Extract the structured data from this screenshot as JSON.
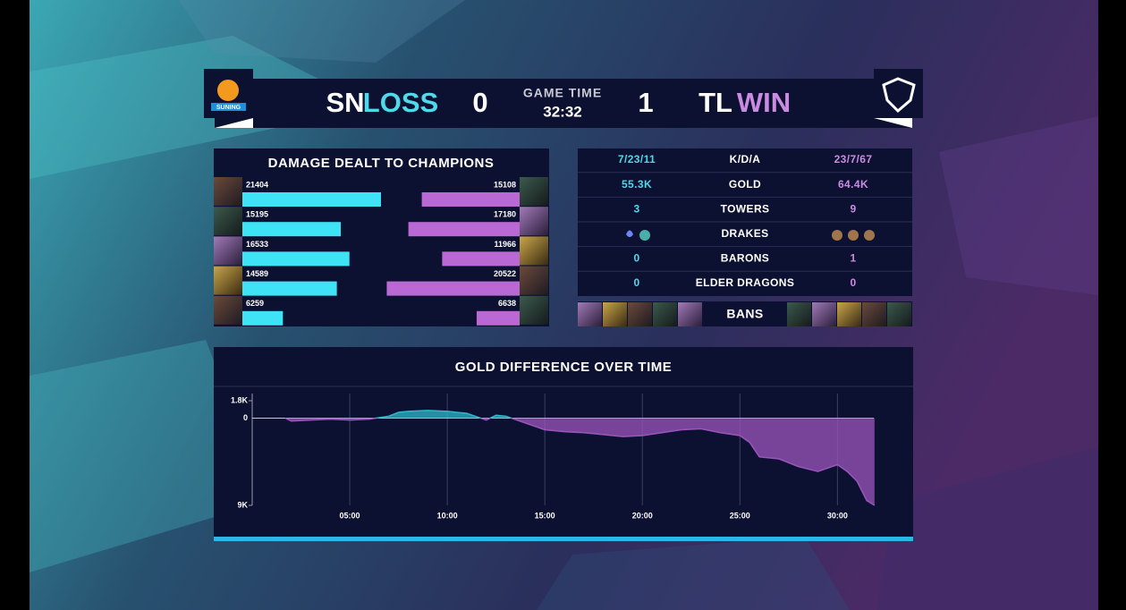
{
  "header": {
    "team_left": {
      "logo_text": "SUNING",
      "tag": "SN",
      "result": "LOSS",
      "score": 0
    },
    "game_time_label": "GAME TIME",
    "game_time": "32:32",
    "team_right": {
      "tag": "TL",
      "result": "WIN",
      "score": 1
    }
  },
  "stats": {
    "rows": [
      {
        "left": "7/23/11",
        "label": "K/D/A",
        "right": "23/7/67"
      },
      {
        "left": "55.3K",
        "label": "GOLD",
        "right": "64.4K"
      },
      {
        "left": 3,
        "label": "TOWERS",
        "right": 9
      },
      {
        "label": "DRAKES"
      },
      {
        "left": 0,
        "label": "BARONS",
        "right": 1
      },
      {
        "left": 0,
        "label": "ELDER DRAGONS",
        "right": 0
      }
    ],
    "bans_label": "BANS"
  },
  "chart_data": [
    {
      "type": "mirror-bar",
      "title": "DAMAGE DEALT TO CHAMPIONS",
      "series": [
        {
          "color": "#3fe3f6",
          "values": [
            21404,
            15195,
            16533,
            14589,
            6259
          ]
        },
        {
          "color": "#b968d4",
          "values": [
            15108,
            17180,
            11966,
            20522,
            6638
          ]
        }
      ]
    },
    {
      "type": "area",
      "title": "GOLD DIFFERENCE OVER TIME",
      "x": [
        1.7,
        2,
        3,
        4,
        5,
        6,
        7,
        7.5,
        8,
        9,
        10,
        11,
        12,
        12.5,
        13,
        14,
        15,
        16,
        17,
        18,
        19,
        20,
        21,
        22,
        23,
        24,
        25,
        25.5,
        26,
        27,
        28,
        29,
        30,
        30.5,
        31,
        31.5,
        31.9
      ],
      "series": [
        {
          "color": "#2fb7c9",
          "negative_color": "#9a55bd",
          "values": [
            0,
            -300,
            -200,
            -100,
            -200,
            -100,
            200,
            600,
            700,
            800,
            700,
            500,
            -200,
            300,
            200,
            -500,
            -1200,
            -1400,
            -1500,
            -1700,
            -1900,
            -1800,
            -1500,
            -1200,
            -1100,
            -1500,
            -1800,
            -2500,
            -4000,
            -4200,
            -5000,
            -5500,
            -4800,
            -5500,
            -6500,
            -8500,
            -9000
          ]
        }
      ],
      "xlim": [
        0,
        32
      ],
      "ylim": [
        -9000,
        1800
      ],
      "xticks": [
        {
          "value": 5,
          "label": "05:00"
        },
        {
          "value": 10,
          "label": "10:00"
        },
        {
          "value": 15,
          "label": "15:00"
        },
        {
          "value": 20,
          "label": "20:00"
        },
        {
          "value": 25,
          "label": "25:00"
        },
        {
          "value": 30,
          "label": "30:00"
        }
      ],
      "yticks": [
        {
          "value": 1800,
          "label": "1.8K"
        },
        0,
        {
          "value": -9000,
          "label": "9K"
        }
      ]
    }
  ]
}
